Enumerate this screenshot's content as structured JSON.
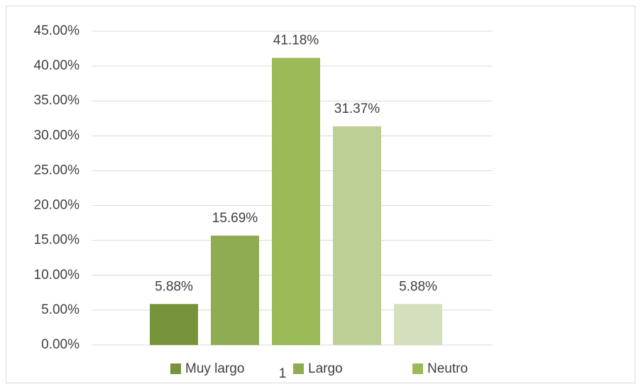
{
  "chart_data": {
    "type": "bar",
    "categories": [
      "1"
    ],
    "series": [
      {
        "name": "Muy largo",
        "color": "#77933c",
        "values": [
          5.88
        ],
        "value_labels": [
          "5.88%"
        ]
      },
      {
        "name": "Largo",
        "color": "#8fac52",
        "values": [
          15.69
        ],
        "value_labels": [
          "15.69%"
        ]
      },
      {
        "name": "Neutro",
        "color": "#9bbb59",
        "values": [
          41.18
        ],
        "value_labels": [
          "41.18%"
        ]
      },
      {
        "color": "#bcd096",
        "values": [
          31.37
        ],
        "value_labels": [
          "31.37%"
        ]
      },
      {
        "color": "#d3dfbd",
        "values": [
          5.88
        ],
        "value_labels": [
          "5.88%"
        ]
      }
    ],
    "ylim": [
      0,
      45
    ],
    "yticks": [
      {
        "value": 0,
        "label": "0.00%"
      },
      {
        "value": 5,
        "label": "5.00%"
      },
      {
        "value": 10,
        "label": "10.00%"
      },
      {
        "value": 15,
        "label": "15.00%"
      },
      {
        "value": 20,
        "label": "20.00%"
      },
      {
        "value": 25,
        "label": "25.00%"
      },
      {
        "value": 30,
        "label": "30.00%"
      },
      {
        "value": 35,
        "label": "35.00%"
      },
      {
        "value": 40,
        "label": "40.00%"
      },
      {
        "value": 45,
        "label": "45.00%"
      }
    ],
    "grid": true
  }
}
